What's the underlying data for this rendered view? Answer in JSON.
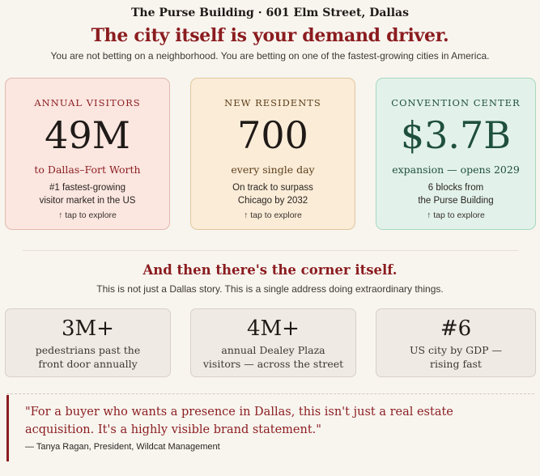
{
  "header": {
    "eyebrow": "The Purse Building · 601 Elm Street, Dallas",
    "headline": "The city itself is your demand driver.",
    "subhead": "You are not betting on a neighborhood. You are betting on one of the fastest-growing cities in America."
  },
  "cards": [
    {
      "label": "ANNUAL VISITORS",
      "value": "49M",
      "caption": "to Dallas–Fort Worth",
      "detail_line1": "#1 fastest-growing",
      "detail_line2": "visitor market in the US",
      "tap": "↑ tap to explore"
    },
    {
      "label": "NEW RESIDENTS",
      "value": "700",
      "caption": "every single day",
      "detail_line1": "On track to surpass",
      "detail_line2": "Chicago by 2032",
      "tap": "↑ tap to explore"
    },
    {
      "label": "CONVENTION CENTER",
      "value": "$3.7B",
      "caption": "expansion — opens 2029",
      "detail_line1": "6 blocks from",
      "detail_line2": "the Purse Building",
      "tap": "↑ tap to explore"
    }
  ],
  "section2": {
    "heading": "And then there's the corner itself.",
    "subhead": "This is not just a Dallas story. This is a single address doing extraordinary things."
  },
  "stats": [
    {
      "value": "3M+",
      "line1": "pedestrians past the",
      "line2": "front door annually"
    },
    {
      "value": "4M+",
      "line1": "annual Dealey Plaza",
      "line2": "visitors — across the street"
    },
    {
      "value": "#6",
      "line1": "US city by GDP —",
      "line2": "rising fast"
    }
  ],
  "quote": {
    "line1": "\"For a buyer who wants a presence in Dallas, this isn't just a real estate",
    "line2": "acquisition. It's a highly visible brand statement.\"",
    "cite": "— Tanya Ragan, President, Wildcat Management"
  },
  "colors": {
    "accent": "#8b1c1f",
    "card1_bg": "#fbe6e0",
    "card2_bg": "#faecd7",
    "card3_bg": "#e2f2ea",
    "stat_bg": "#efebe4"
  }
}
